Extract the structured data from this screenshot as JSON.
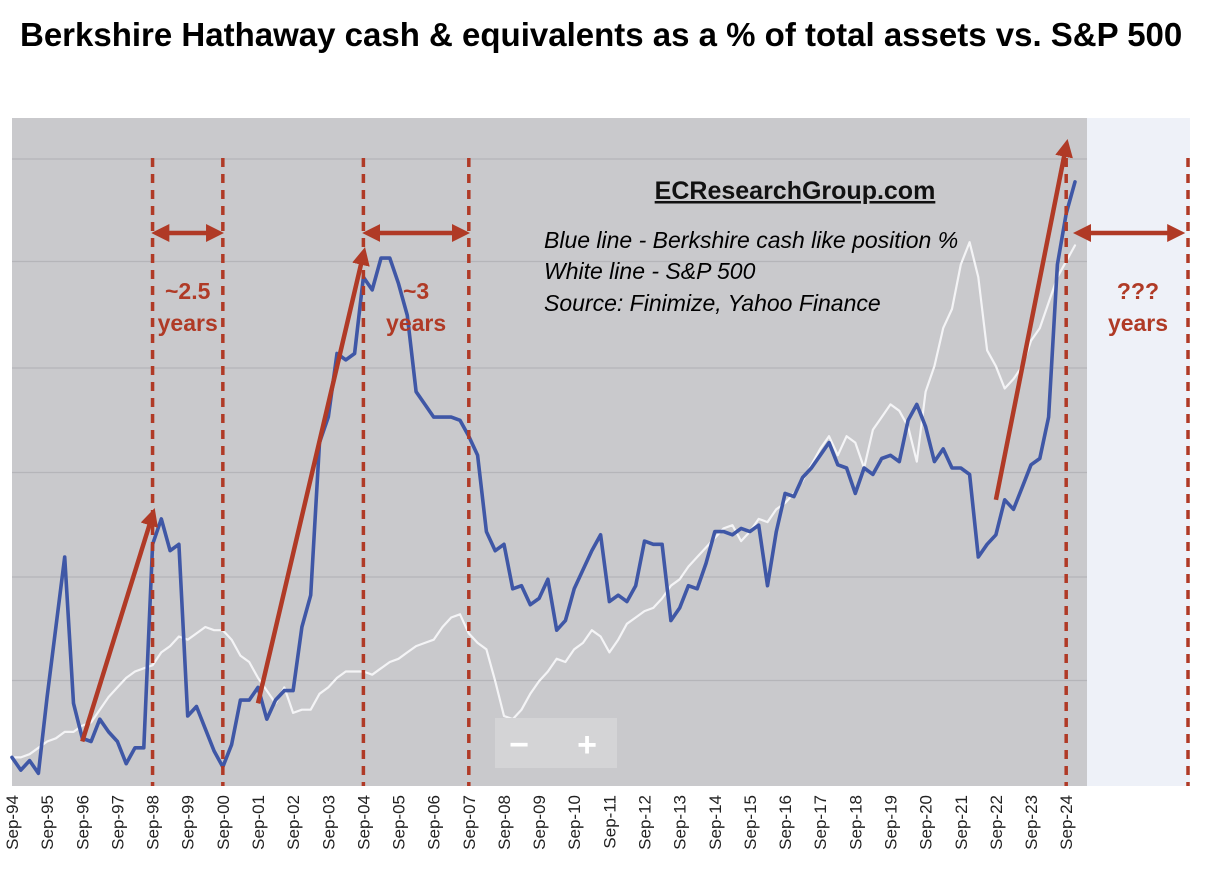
{
  "title": "Berkshire Hathaway cash & equivalents as a % of total assets vs. S&P 500",
  "watermark": "ECResearchGroup.com",
  "legend": [
    "Blue line - Berkshire cash like position %",
    "White line - S&P 500",
    "Source: Finimize, Yahoo Finance"
  ],
  "zoom_controls": {
    "minus": "−",
    "plus": "+"
  },
  "colors": {
    "plot_bg": "#c9c9cc",
    "future_bg": "#eef1f8",
    "berkshire_line": "#3f57a6",
    "sp500_line": "#f4f4f6",
    "annotation": "#b03a26"
  },
  "annotations": {
    "periods": [
      {
        "label_lines": [
          "~2.5",
          "years"
        ],
        "from": "Sep-98",
        "to": "Sep-00"
      },
      {
        "label_lines": [
          "~3",
          "years"
        ],
        "from": "Sep-04",
        "to": "Sep-07"
      },
      {
        "label_lines": [
          "???",
          "years"
        ],
        "from": "Sep-24",
        "to": ""
      }
    ],
    "vertical_lines_at": [
      "Sep-98",
      "Sep-00",
      "Sep-04",
      "Sep-07",
      "Sep-24"
    ],
    "trend_arrows": [
      {
        "from": "Sep-96",
        "to": "Sep-98"
      },
      {
        "from": "Sep-01",
        "to": "Sep-04"
      },
      {
        "from": "Sep-22",
        "to": "Sep-24"
      }
    ]
  },
  "chart_data": {
    "type": "line",
    "title": "Berkshire Hathaway cash & equivalents as a % of total assets vs. S&P 500",
    "x_ticks": [
      "Sep-94",
      "Sep-95",
      "Sep-96",
      "Sep-97",
      "Sep-98",
      "Sep-99",
      "Sep-00",
      "Sep-01",
      "Sep-02",
      "Sep-03",
      "Sep-04",
      "Sep-05",
      "Sep-06",
      "Sep-07",
      "Sep-08",
      "Sep-09",
      "Sep-10",
      "Sep-11",
      "Sep-12",
      "Sep-13",
      "Sep-14",
      "Sep-15",
      "Sep-16",
      "Sep-17",
      "Sep-18",
      "Sep-19",
      "Sep-20",
      "Sep-21",
      "Sep-22",
      "Sep-23",
      "Sep-24"
    ],
    "xlim": [
      1994.5,
      2024.95
    ],
    "ylim": [
      0,
      100
    ],
    "y_axis_labels": "none",
    "grid": "horizontal",
    "series": [
      {
        "name": "Blue line - Berkshire cash like position %",
        "x": [
          1994.5,
          1994.75,
          1995.0,
          1995.25,
          1995.5,
          1995.75,
          1996.0,
          1996.25,
          1996.5,
          1996.75,
          1997.0,
          1997.25,
          1997.5,
          1997.75,
          1998.0,
          1998.25,
          1998.5,
          1998.75,
          1999.0,
          1999.25,
          1999.5,
          1999.75,
          2000.0,
          2000.25,
          2000.5,
          2000.75,
          2001.0,
          2001.25,
          2001.5,
          2001.75,
          2002.0,
          2002.25,
          2002.5,
          2002.75,
          2003.0,
          2003.25,
          2003.5,
          2003.75,
          2004.0,
          2004.25,
          2004.5,
          2004.75,
          2005.0,
          2005.25,
          2005.5,
          2005.75,
          2006.0,
          2006.25,
          2006.5,
          2006.75,
          2007.0,
          2007.25,
          2007.5,
          2007.75,
          2008.0,
          2008.25,
          2008.5,
          2008.75,
          2009.0,
          2009.25,
          2009.5,
          2009.75,
          2010.0,
          2010.25,
          2010.5,
          2010.75,
          2011.0,
          2011.25,
          2011.5,
          2011.75,
          2012.0,
          2012.25,
          2012.5,
          2012.75,
          2013.0,
          2013.25,
          2013.5,
          2013.75,
          2014.0,
          2014.25,
          2014.5,
          2014.75,
          2015.0,
          2015.25,
          2015.5,
          2015.75,
          2016.0,
          2016.25,
          2016.5,
          2016.75,
          2017.0,
          2017.25,
          2017.5,
          2017.75,
          2018.0,
          2018.25,
          2018.5,
          2018.75,
          2019.0,
          2019.25,
          2019.5,
          2019.75,
          2020.0,
          2020.25,
          2020.5,
          2020.75,
          2021.0,
          2021.25,
          2021.5,
          2021.75,
          2022.0,
          2022.25,
          2022.5,
          2022.75,
          2023.0,
          2023.25,
          2023.5,
          2023.75,
          2024.0,
          2024.25,
          2024.5,
          2024.75
        ],
        "y": [
          4.5,
          2.5,
          4.0,
          2.0,
          14.0,
          25.0,
          36.0,
          13.0,
          7.5,
          7.0,
          10.5,
          8.5,
          7.0,
          3.5,
          6.0,
          6.0,
          38.0,
          42.0,
          37.0,
          38.0,
          11.0,
          12.5,
          9.0,
          5.5,
          3.0,
          6.5,
          13.5,
          13.5,
          15.5,
          10.5,
          13.5,
          15.0,
          15.0,
          25.0,
          30.0,
          54.0,
          58.0,
          68.0,
          67.0,
          68.0,
          80.0,
          78.0,
          83.0,
          83.0,
          79.0,
          74.0,
          62.0,
          60.0,
          58.0,
          58.0,
          58.0,
          57.5,
          55.0,
          52.0,
          40.0,
          37.0,
          38.0,
          31.0,
          31.5,
          28.5,
          29.5,
          32.5,
          24.5,
          26.0,
          31.0,
          34.0,
          37.0,
          39.5,
          29.0,
          30.0,
          29.0,
          31.5,
          38.5,
          38.0,
          38.0,
          26.0,
          28.0,
          31.5,
          31.0,
          35.0,
          40.0,
          40.0,
          39.5,
          40.5,
          40.0,
          41.0,
          31.5,
          40.0,
          46.0,
          45.5,
          48.5,
          50.0,
          52.0,
          54.0,
          50.5,
          50.0,
          46.0,
          50.0,
          49.0,
          51.5,
          52.0,
          51.0,
          57.5,
          60.0,
          56.5,
          51.0,
          53.0,
          50.0,
          50.0,
          49.0,
          36.0,
          38.0,
          39.5,
          45.0,
          43.5,
          47.0,
          50.5,
          51.5,
          58.0,
          82.0,
          90.0,
          95.0
        ]
      },
      {
        "name": "White line - S&P 500",
        "x": [
          1994.5,
          1994.75,
          1995.0,
          1995.25,
          1995.5,
          1995.75,
          1996.0,
          1996.25,
          1996.5,
          1996.75,
          1997.0,
          1997.25,
          1997.5,
          1997.75,
          1998.0,
          1998.25,
          1998.5,
          1998.75,
          1999.0,
          1999.25,
          1999.5,
          1999.75,
          2000.0,
          2000.25,
          2000.5,
          2000.75,
          2001.0,
          2001.25,
          2001.5,
          2001.75,
          2002.0,
          2002.25,
          2002.5,
          2002.75,
          2003.0,
          2003.25,
          2003.5,
          2003.75,
          2004.0,
          2004.25,
          2004.5,
          2004.75,
          2005.0,
          2005.25,
          2005.5,
          2005.75,
          2006.0,
          2006.25,
          2006.5,
          2006.75,
          2007.0,
          2007.25,
          2007.5,
          2007.75,
          2008.0,
          2008.25,
          2008.5,
          2008.75,
          2009.0,
          2009.25,
          2009.5,
          2009.75,
          2010.0,
          2010.25,
          2010.5,
          2010.75,
          2011.0,
          2011.25,
          2011.5,
          2011.75,
          2012.0,
          2012.25,
          2012.5,
          2012.75,
          2013.0,
          2013.25,
          2013.5,
          2013.75,
          2014.0,
          2014.25,
          2014.5,
          2014.75,
          2015.0,
          2015.25,
          2015.5,
          2015.75,
          2016.0,
          2016.25,
          2016.5,
          2016.75,
          2017.0,
          2017.25,
          2017.5,
          2017.75,
          2018.0,
          2018.25,
          2018.5,
          2018.75,
          2019.0,
          2019.25,
          2019.5,
          2019.75,
          2020.0,
          2020.25,
          2020.5,
          2020.75,
          2021.0,
          2021.25,
          2021.5,
          2021.75,
          2022.0,
          2022.25,
          2022.5,
          2022.75,
          2023.0,
          2023.25,
          2023.5,
          2023.75,
          2024.0,
          2024.25,
          2024.5,
          2024.75
        ],
        "y": [
          4.5,
          4.5,
          5.0,
          6.0,
          7.0,
          7.5,
          8.5,
          8.5,
          9.5,
          10.0,
          12.0,
          14.0,
          15.5,
          17.0,
          18.0,
          18.5,
          19.0,
          21.0,
          22.0,
          23.5,
          23.0,
          24.0,
          25.0,
          24.5,
          24.5,
          23.0,
          20.5,
          19.5,
          17.0,
          15.0,
          13.0,
          15.5,
          11.5,
          12.0,
          12.0,
          14.5,
          15.5,
          17.0,
          18.0,
          18.0,
          18.0,
          17.5,
          18.5,
          19.5,
          20.0,
          21.0,
          22.0,
          22.5,
          23.0,
          25.0,
          26.5,
          27.0,
          24.0,
          22.5,
          21.5,
          16.5,
          11.0,
          10.5,
          12.0,
          14.5,
          16.5,
          18.0,
          20.0,
          19.5,
          21.5,
          22.5,
          24.5,
          23.5,
          21.0,
          23.0,
          25.5,
          26.5,
          27.5,
          28.0,
          29.5,
          31.5,
          32.5,
          34.5,
          36.0,
          37.5,
          39.0,
          40.5,
          41.0,
          38.5,
          40.0,
          42.0,
          41.5,
          43.5,
          44.5,
          46.0,
          48.0,
          50.5,
          53.0,
          55.0,
          52.0,
          55.0,
          54.0,
          50.0,
          56.0,
          58.0,
          60.0,
          59.0,
          56.5,
          51.0,
          62.0,
          66.0,
          72.0,
          75.0,
          82.0,
          85.5,
          80.0,
          68.5,
          66.0,
          62.5,
          64.0,
          66.0,
          70.0,
          72.0,
          76.0,
          80.0,
          82.5,
          85.0
        ]
      }
    ]
  }
}
